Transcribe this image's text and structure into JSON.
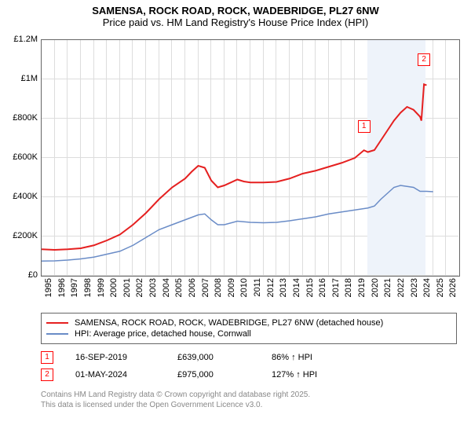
{
  "title": {
    "line1": "SAMENSA, ROCK ROAD, ROCK, WADEBRIDGE, PL27 6NW",
    "line2": "Price paid vs. HM Land Registry's House Price Index (HPI)"
  },
  "chart": {
    "type": "line",
    "background_color": "#ffffff",
    "grid_color": "#dddddd",
    "border_color": "#666666",
    "x_range": [
      1995,
      2027
    ],
    "y_range": [
      0,
      1200000
    ],
    "y_ticks": [
      {
        "v": 0,
        "label": "£0"
      },
      {
        "v": 200000,
        "label": "£200K"
      },
      {
        "v": 400000,
        "label": "£400K"
      },
      {
        "v": 600000,
        "label": "£600K"
      },
      {
        "v": 800000,
        "label": "£800K"
      },
      {
        "v": 1000000,
        "label": "£1M"
      },
      {
        "v": 1200000,
        "label": "£1.2M"
      }
    ],
    "x_ticks": [
      1995,
      1996,
      1997,
      1998,
      1999,
      2000,
      2001,
      2002,
      2003,
      2004,
      2005,
      2006,
      2007,
      2008,
      2009,
      2010,
      2011,
      2012,
      2013,
      2014,
      2015,
      2016,
      2017,
      2018,
      2019,
      2020,
      2021,
      2022,
      2023,
      2024,
      2025,
      2026
    ],
    "hatch_band": {
      "x_start": 2020,
      "x_end": 2024.5,
      "color": "#eef3fa"
    },
    "series": [
      {
        "name": "price_paid",
        "color": "#e52020",
        "width": 2,
        "data": [
          [
            1995,
            135000
          ],
          [
            1996,
            132000
          ],
          [
            1997,
            135000
          ],
          [
            1998,
            140000
          ],
          [
            1999,
            155000
          ],
          [
            2000,
            180000
          ],
          [
            2001,
            210000
          ],
          [
            2002,
            260000
          ],
          [
            2003,
            320000
          ],
          [
            2004,
            390000
          ],
          [
            2005,
            450000
          ],
          [
            2006,
            495000
          ],
          [
            2006.5,
            530000
          ],
          [
            2007,
            560000
          ],
          [
            2007.5,
            550000
          ],
          [
            2008,
            485000
          ],
          [
            2008.5,
            450000
          ],
          [
            2009,
            460000
          ],
          [
            2010,
            490000
          ],
          [
            2010.5,
            480000
          ],
          [
            2011,
            475000
          ],
          [
            2012,
            475000
          ],
          [
            2013,
            478000
          ],
          [
            2014,
            495000
          ],
          [
            2015,
            520000
          ],
          [
            2016,
            535000
          ],
          [
            2017,
            555000
          ],
          [
            2018,
            575000
          ],
          [
            2019,
            600000
          ],
          [
            2019.7,
            639000
          ],
          [
            2020,
            630000
          ],
          [
            2020.5,
            640000
          ],
          [
            2021,
            690000
          ],
          [
            2021.5,
            740000
          ],
          [
            2022,
            790000
          ],
          [
            2022.5,
            830000
          ],
          [
            2023,
            860000
          ],
          [
            2023.5,
            845000
          ],
          [
            2024,
            810000
          ],
          [
            2024.1,
            790000
          ],
          [
            2024.3,
            975000
          ],
          [
            2024.5,
            970000
          ]
        ]
      },
      {
        "name": "hpi",
        "color": "#6a8cc7",
        "width": 1.5,
        "data": [
          [
            1995,
            75000
          ],
          [
            1996,
            76000
          ],
          [
            1997,
            80000
          ],
          [
            1998,
            86000
          ],
          [
            1999,
            95000
          ],
          [
            2000,
            110000
          ],
          [
            2001,
            125000
          ],
          [
            2002,
            155000
          ],
          [
            2003,
            195000
          ],
          [
            2004,
            235000
          ],
          [
            2005,
            260000
          ],
          [
            2006,
            285000
          ],
          [
            2007,
            310000
          ],
          [
            2007.5,
            315000
          ],
          [
            2008,
            285000
          ],
          [
            2008.5,
            260000
          ],
          [
            2009,
            260000
          ],
          [
            2010,
            278000
          ],
          [
            2011,
            272000
          ],
          [
            2012,
            270000
          ],
          [
            2013,
            272000
          ],
          [
            2014,
            280000
          ],
          [
            2015,
            290000
          ],
          [
            2016,
            300000
          ],
          [
            2017,
            315000
          ],
          [
            2018,
            325000
          ],
          [
            2019,
            335000
          ],
          [
            2020,
            345000
          ],
          [
            2020.5,
            355000
          ],
          [
            2021,
            390000
          ],
          [
            2021.5,
            420000
          ],
          [
            2022,
            450000
          ],
          [
            2022.5,
            460000
          ],
          [
            2023,
            455000
          ],
          [
            2023.5,
            450000
          ],
          [
            2024,
            430000
          ],
          [
            2024.5,
            430000
          ],
          [
            2025,
            428000
          ]
        ]
      }
    ],
    "markers": [
      {
        "label": "1",
        "x": 2019.7,
        "y": 760000
      },
      {
        "label": "2",
        "x": 2024.3,
        "y": 1100000
      }
    ]
  },
  "legend": {
    "items": [
      {
        "color": "#e52020",
        "width": 2,
        "label": "SAMENSA, ROCK ROAD, ROCK, WADEBRIDGE, PL27 6NW (detached house)"
      },
      {
        "color": "#6a8cc7",
        "width": 1.5,
        "label": "HPI: Average price, detached house, Cornwall"
      }
    ]
  },
  "sales": [
    {
      "marker": "1",
      "date": "16-SEP-2019",
      "price": "£639,000",
      "pct": "86% ↑ HPI"
    },
    {
      "marker": "2",
      "date": "01-MAY-2024",
      "price": "£975,000",
      "pct": "127% ↑ HPI"
    }
  ],
  "footer": {
    "line1": "Contains HM Land Registry data © Crown copyright and database right 2025.",
    "line2": "This data is licensed under the Open Government Licence v3.0."
  }
}
